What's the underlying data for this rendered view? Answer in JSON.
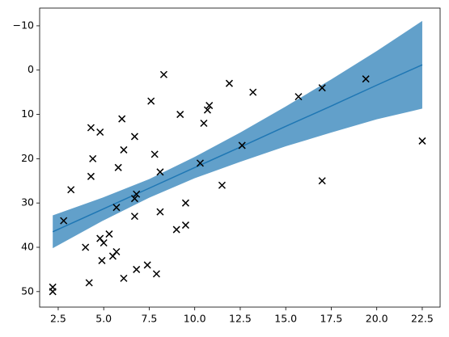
{
  "chart_data": {
    "type": "scatter",
    "x": [
      2.2,
      2.2,
      2.8,
      3.2,
      4.0,
      4.2,
      4.3,
      4.3,
      4.4,
      4.8,
      4.8,
      4.9,
      5.0,
      5.3,
      5.5,
      5.7,
      5.7,
      5.8,
      6.0,
      6.1,
      6.1,
      6.7,
      6.7,
      6.7,
      6.8,
      6.8,
      7.4,
      7.6,
      7.8,
      7.9,
      8.1,
      8.1,
      8.3,
      9.0,
      9.2,
      9.5,
      9.5,
      10.3,
      10.5,
      10.7,
      10.8,
      11.5,
      11.9,
      12.6,
      13.2,
      15.7,
      17.0,
      17.0,
      19.4,
      22.5
    ],
    "values": [
      49,
      50,
      34,
      27,
      40,
      48,
      13,
      24,
      20,
      14,
      38,
      43,
      39,
      37,
      42,
      41,
      31,
      22,
      11,
      18,
      47,
      15,
      33,
      29,
      28,
      45,
      44,
      7,
      19,
      46,
      23,
      32,
      1,
      36,
      10,
      30,
      35,
      21,
      12,
      9,
      8,
      26,
      3,
      17,
      5,
      6,
      4,
      25,
      2,
      16
    ],
    "color": "#000000",
    "fit": {
      "x": [
        2.2,
        5,
        7.5,
        10,
        12.5,
        15,
        17.5,
        20,
        22.5
      ],
      "values": [
        36.5,
        31.3,
        26.66,
        22.0,
        17.4,
        12.7,
        8.1,
        3.4,
        -1.2
      ],
      "lower": [
        32.8,
        28.7,
        24.6,
        19.6,
        14.1,
        8.2,
        2.1,
        -4.3,
        -11.1
      ],
      "upper": [
        40.2,
        33.9,
        28.8,
        24.4,
        20.7,
        17.2,
        14.1,
        11.1,
        8.7
      ],
      "color": "#1f77b4"
    },
    "xlim": [
      1.48,
      23.48
    ],
    "ylim": [
      53.5,
      -14
    ],
    "xticks": [
      {
        "value": 2.5,
        "label": "2.5"
      },
      {
        "value": 5,
        "label": "5.0"
      },
      {
        "value": 7.5,
        "label": "7.5"
      },
      {
        "value": 10,
        "label": "10.0"
      },
      {
        "value": 12.5,
        "label": "12.5"
      },
      {
        "value": 15,
        "label": "15.0"
      },
      {
        "value": 17.5,
        "label": "17.5"
      },
      {
        "value": 20,
        "label": "20.0"
      },
      {
        "value": 22.5,
        "label": "22.5"
      }
    ],
    "yticks": [
      {
        "value": -10,
        "label": "−10"
      },
      0,
      10,
      20,
      30,
      40,
      50
    ]
  }
}
